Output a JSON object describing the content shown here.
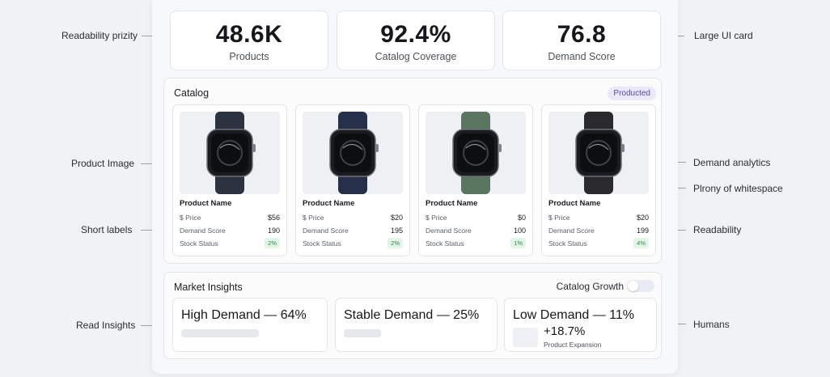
{
  "annotations": {
    "left": [
      "Readability prizity",
      "Product Image",
      "Short labels",
      "Read Insights"
    ],
    "right": [
      "Large UI card",
      "Demand analytics",
      "Plrony of whitespace",
      "Readability",
      "Humans"
    ]
  },
  "kpis": [
    {
      "value": "48.6K",
      "label": "Products"
    },
    {
      "value": "92.4%",
      "label": "Catalog Coverage"
    },
    {
      "value": "76.8",
      "label": "Demand Score"
    }
  ],
  "catalog": {
    "title": "Catalog",
    "badge": "Producted",
    "row_labels": {
      "price": "$ Price",
      "demand": "Demand Score",
      "stock": "Stock Status"
    },
    "products": [
      {
        "name": "Product Name",
        "price": "$56",
        "demand": "190",
        "stock": "2%",
        "band_color": "#2b3340"
      },
      {
        "name": "Product Name",
        "price": "$20",
        "demand": "195",
        "stock": "2%",
        "band_color": "#26304a"
      },
      {
        "name": "Product Name",
        "price": "$0",
        "demand": "100",
        "stock": "1%",
        "band_color": "#5a7560"
      },
      {
        "name": "Product Name",
        "price": "$20",
        "demand": "199",
        "stock": "4%",
        "band_color": "#2a2a2c"
      }
    ]
  },
  "insights": {
    "title": "Market Insights",
    "toggle_label": "Catalog Growth",
    "cards": [
      {
        "title": "High Demand  — 64%"
      },
      {
        "title": "Stable Demand — 25%"
      },
      {
        "title": "Low Demand — 11%",
        "value": "+18.7%",
        "sub": "Product Expansion"
      }
    ]
  }
}
